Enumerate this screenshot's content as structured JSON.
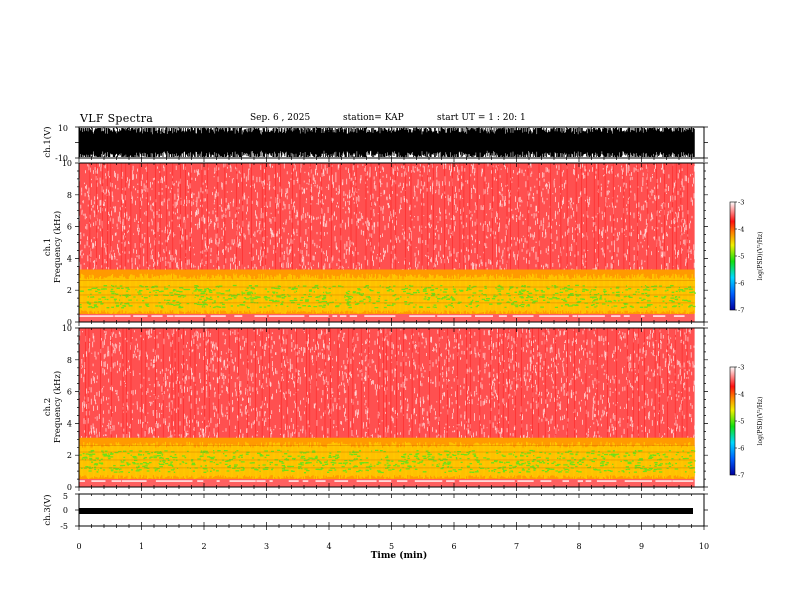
{
  "header": {
    "title": "VLF Spectra",
    "date": "Sep. 6 , 2025",
    "station": "station= KAP",
    "start_ut": "start UT =  1 : 20: 1"
  },
  "chart_data": [
    {
      "type": "line",
      "name": "ch1-waveform",
      "ylabel": "ch.1(V)",
      "ylim": [
        -10,
        10
      ],
      "ytick_labels": [
        "10",
        "-10"
      ],
      "xlim": [
        0,
        10
      ]
    },
    {
      "type": "heatmap",
      "name": "ch1-spectrogram",
      "ylabel": "ch.1\nFrequency (kHz)",
      "ylim": [
        0,
        10
      ],
      "yticks": [
        0,
        2,
        4,
        6,
        8,
        10
      ],
      "ytick_labels": [
        "0",
        "2",
        "4",
        "6",
        "8",
        "10"
      ],
      "xlim": [
        0,
        9.85
      ],
      "band_top_khz": 3.3,
      "colorbar": {
        "range": [
          -7,
          -3
        ],
        "tick_labels": [
          "-7",
          "-6",
          "-5",
          "-4",
          "-3"
        ],
        "label": "log(PSD)(V²/Hz)"
      }
    },
    {
      "type": "heatmap",
      "name": "ch2-spectrogram",
      "ylabel": "ch.2\nFrequency (kHz)",
      "ylim": [
        0,
        10
      ],
      "yticks": [
        0,
        2,
        4,
        6,
        8,
        10
      ],
      "ytick_labels": [
        "0",
        "2",
        "4",
        "6",
        "8",
        "10"
      ],
      "xlim": [
        0,
        9.85
      ],
      "band_top_khz": 3.1,
      "colorbar": {
        "range": [
          -7,
          -3
        ],
        "tick_labels": [
          "-7",
          "-6",
          "-5",
          "-4",
          "-3"
        ],
        "label": "log(PSD)(V²/Hz)"
      }
    },
    {
      "type": "line",
      "name": "ch3-waveform",
      "ylabel": "ch.3(V)",
      "ylim": [
        -5,
        5
      ],
      "ytick_labels": [
        "5",
        "0",
        "-5"
      ],
      "xlim": [
        0,
        10
      ],
      "xlabel": "Time (min)",
      "xticks": [
        0,
        1,
        2,
        3,
        4,
        5,
        6,
        7,
        8,
        9,
        10
      ],
      "xtick_labels": [
        "0",
        "1",
        "2",
        "3",
        "4",
        "5",
        "6",
        "7",
        "8",
        "9",
        "10"
      ]
    }
  ],
  "colors": {
    "background_red": "#ff3b3b",
    "band_yellow": "#ffd400",
    "band_green": "#5ee51a",
    "axis": "#000000"
  }
}
